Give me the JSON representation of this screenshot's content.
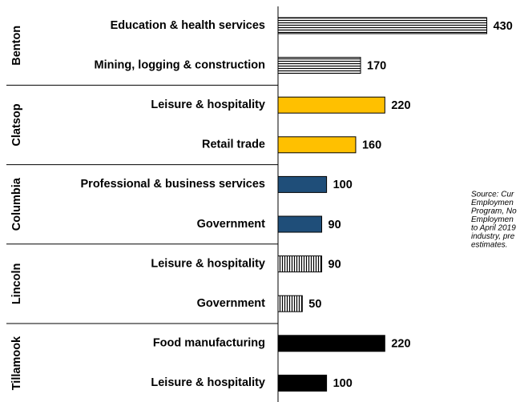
{
  "chart_data": {
    "type": "bar",
    "xlim": [
      0,
      500
    ],
    "groups": [
      {
        "name": "Benton",
        "fill": "horizontal-stripes",
        "categories": [
          "Education & health services",
          "Mining, logging & construction"
        ],
        "values": [
          430,
          170
        ]
      },
      {
        "name": "Clatsop",
        "fill": "#FFC000",
        "categories": [
          "Leisure & hospitality",
          "Retail trade"
        ],
        "values": [
          220,
          160
        ]
      },
      {
        "name": "Columbia",
        "fill": "#1F4E79",
        "categories": [
          "Professional & business services",
          "Government"
        ],
        "values": [
          100,
          90
        ]
      },
      {
        "name": "Lincoln",
        "fill": "vertical-stripes",
        "categories": [
          "Leisure & hospitality",
          "Government"
        ],
        "values": [
          90,
          50
        ]
      },
      {
        "name": "Tillamook",
        "fill": "#000000",
        "categories": [
          "Food manufacturing",
          "Leisure & hospitality"
        ],
        "values": [
          220,
          100
        ]
      }
    ],
    "annotation": [
      "Source: Cur",
      "Employmen",
      "Program, No",
      "Employmen",
      "to April 2019",
      "industry, pre",
      "estimates."
    ]
  }
}
